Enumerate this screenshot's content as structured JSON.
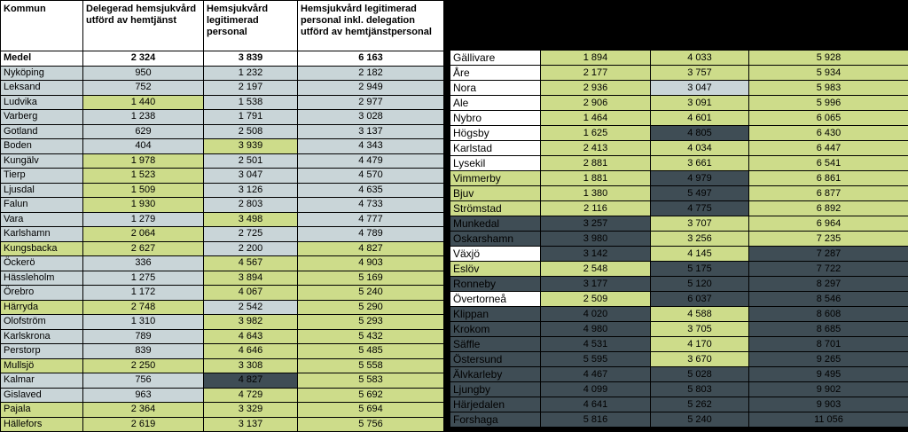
{
  "headers": {
    "kommun": "Kommun",
    "col1": "Delegerad hemsjukvård utförd av hemtjänst",
    "col2": "Hemsjukvård legitimerad personal",
    "col3": "Hemsjukvård legitimerad personal inkl. delegation utförd av hemtjänstpersonal"
  },
  "colors": {
    "green": "#cddc8a",
    "blue_grey": "#c9d5d8",
    "dark": "#3f4d55",
    "white": "#ffffff"
  },
  "left_rows": [
    {
      "kommun": "Medel",
      "v1": "2 324",
      "v2": "3 839",
      "v3": "6 163",
      "c": [
        "w",
        "w",
        "w",
        "w"
      ]
    },
    {
      "kommun": "Nyköping",
      "v1": "950",
      "v2": "1 232",
      "v3": "2 182",
      "c": [
        "b",
        "b",
        "b",
        "b"
      ]
    },
    {
      "kommun": "Leksand",
      "v1": "752",
      "v2": "2 197",
      "v3": "2 949",
      "c": [
        "b",
        "b",
        "b",
        "b"
      ]
    },
    {
      "kommun": "Ludvika",
      "v1": "1 440",
      "v2": "1 538",
      "v3": "2 977",
      "c": [
        "b",
        "g",
        "b",
        "b"
      ]
    },
    {
      "kommun": "Varberg",
      "v1": "1 238",
      "v2": "1 791",
      "v3": "3 028",
      "c": [
        "b",
        "b",
        "b",
        "b"
      ]
    },
    {
      "kommun": "Gotland",
      "v1": "629",
      "v2": "2 508",
      "v3": "3 137",
      "c": [
        "b",
        "b",
        "b",
        "b"
      ]
    },
    {
      "kommun": "Boden",
      "v1": "404",
      "v2": "3 939",
      "v3": "4 343",
      "c": [
        "b",
        "b",
        "g",
        "b"
      ]
    },
    {
      "kommun": "Kungälv",
      "v1": "1 978",
      "v2": "2 501",
      "v3": "4 479",
      "c": [
        "b",
        "g",
        "b",
        "b"
      ]
    },
    {
      "kommun": "Tierp",
      "v1": "1 523",
      "v2": "3 047",
      "v3": "4 570",
      "c": [
        "b",
        "g",
        "b",
        "b"
      ]
    },
    {
      "kommun": "Ljusdal",
      "v1": "1 509",
      "v2": "3 126",
      "v3": "4 635",
      "c": [
        "b",
        "g",
        "b",
        "b"
      ]
    },
    {
      "kommun": "Falun",
      "v1": "1 930",
      "v2": "2 803",
      "v3": "4 733",
      "c": [
        "b",
        "g",
        "b",
        "b"
      ]
    },
    {
      "kommun": "Vara",
      "v1": "1 279",
      "v2": "3 498",
      "v3": "4 777",
      "c": [
        "b",
        "b",
        "g",
        "b"
      ]
    },
    {
      "kommun": "Karlshamn",
      "v1": "2 064",
      "v2": "2 725",
      "v3": "4 789",
      "c": [
        "b",
        "g",
        "b",
        "b"
      ]
    },
    {
      "kommun": "Kungsbacka",
      "v1": "2 627",
      "v2": "2 200",
      "v3": "4 827",
      "c": [
        "g",
        "g",
        "b",
        "g"
      ]
    },
    {
      "kommun": "Öckerö",
      "v1": "336",
      "v2": "4 567",
      "v3": "4 903",
      "c": [
        "b",
        "b",
        "g",
        "g"
      ]
    },
    {
      "kommun": "Hässleholm",
      "v1": "1 275",
      "v2": "3 894",
      "v3": "5 169",
      "c": [
        "b",
        "b",
        "g",
        "g"
      ]
    },
    {
      "kommun": "Örebro",
      "v1": "1 172",
      "v2": "4 067",
      "v3": "5 240",
      "c": [
        "b",
        "b",
        "g",
        "g"
      ]
    },
    {
      "kommun": "Härryda",
      "v1": "2 748",
      "v2": "2 542",
      "v3": "5 290",
      "c": [
        "g",
        "g",
        "b",
        "g"
      ]
    },
    {
      "kommun": "Olofström",
      "v1": "1 310",
      "v2": "3 982",
      "v3": "5 293",
      "c": [
        "b",
        "b",
        "g",
        "g"
      ]
    },
    {
      "kommun": "Karlskrona",
      "v1": "789",
      "v2": "4 643",
      "v3": "5 432",
      "c": [
        "b",
        "b",
        "g",
        "g"
      ]
    },
    {
      "kommun": "Perstorp",
      "v1": "839",
      "v2": "4 646",
      "v3": "5 485",
      "c": [
        "b",
        "b",
        "g",
        "g"
      ]
    },
    {
      "kommun": "Mullsjö",
      "v1": "2 250",
      "v2": "3 308",
      "v3": "5 558",
      "c": [
        "g",
        "g",
        "g",
        "g"
      ]
    },
    {
      "kommun": "Kalmar",
      "v1": "756",
      "v2": "4 827",
      "v3": "5 583",
      "c": [
        "b",
        "b",
        "d",
        "g"
      ]
    },
    {
      "kommun": "Gislaved",
      "v1": "963",
      "v2": "4 729",
      "v3": "5 692",
      "c": [
        "b",
        "b",
        "g",
        "g"
      ]
    },
    {
      "kommun": "Pajala",
      "v1": "2 364",
      "v2": "3 329",
      "v3": "5 694",
      "c": [
        "g",
        "g",
        "g",
        "g"
      ]
    },
    {
      "kommun": "Hällefors",
      "v1": "2 619",
      "v2": "3 137",
      "v3": "5 756",
      "c": [
        "g",
        "g",
        "g",
        "g"
      ]
    }
  ],
  "right_rows": [
    {
      "kommun": "Gällivare",
      "v1": "1 894",
      "v2": "4 033",
      "v3": "5 928",
      "c": [
        "w",
        "g",
        "g",
        "g"
      ]
    },
    {
      "kommun": "Åre",
      "v1": "2 177",
      "v2": "3 757",
      "v3": "5 934",
      "c": [
        "w",
        "g",
        "g",
        "g"
      ]
    },
    {
      "kommun": "Nora",
      "v1": "2 936",
      "v2": "3 047",
      "v3": "5 983",
      "c": [
        "w",
        "g",
        "b",
        "g"
      ]
    },
    {
      "kommun": "Ale",
      "v1": "2 906",
      "v2": "3 091",
      "v3": "5 996",
      "c": [
        "w",
        "g",
        "g",
        "g"
      ]
    },
    {
      "kommun": "Nybro",
      "v1": "1 464",
      "v2": "4 601",
      "v3": "6 065",
      "c": [
        "w",
        "g",
        "g",
        "g"
      ]
    },
    {
      "kommun": "Högsby",
      "v1": "1 625",
      "v2": "4 805",
      "v3": "6 430",
      "c": [
        "w",
        "g",
        "d",
        "g"
      ]
    },
    {
      "kommun": "Karlstad",
      "v1": "2 413",
      "v2": "4 034",
      "v3": "6 447",
      "c": [
        "w",
        "g",
        "g",
        "g"
      ]
    },
    {
      "kommun": "Lysekil",
      "v1": "2 881",
      "v2": "3 661",
      "v3": "6 541",
      "c": [
        "w",
        "g",
        "g",
        "g"
      ]
    },
    {
      "kommun": "Vimmerby",
      "v1": "1 881",
      "v2": "4 979",
      "v3": "6 861",
      "c": [
        "g",
        "g",
        "d",
        "g"
      ]
    },
    {
      "kommun": "Bjuv",
      "v1": "1 380",
      "v2": "5 497",
      "v3": "6 877",
      "c": [
        "g",
        "g",
        "d",
        "g"
      ]
    },
    {
      "kommun": "Strömstad",
      "v1": "2 116",
      "v2": "4 775",
      "v3": "6 892",
      "c": [
        "g",
        "g",
        "d",
        "g"
      ]
    },
    {
      "kommun": "Munkedal",
      "v1": "3 257",
      "v2": "3 707",
      "v3": "6 964",
      "c": [
        "d",
        "d",
        "g",
        "g"
      ]
    },
    {
      "kommun": "Oskarshamn",
      "v1": "3 980",
      "v2": "3 256",
      "v3": "7 235",
      "c": [
        "d",
        "d",
        "g",
        "g"
      ]
    },
    {
      "kommun": "Växjö",
      "v1": "3 142",
      "v2": "4 145",
      "v3": "7 287",
      "c": [
        "w",
        "d",
        "g",
        "d"
      ]
    },
    {
      "kommun": "Eslöv",
      "v1": "2 548",
      "v2": "5 175",
      "v3": "7 722",
      "c": [
        "g",
        "g",
        "d",
        "d"
      ]
    },
    {
      "kommun": "Ronneby",
      "v1": "3 177",
      "v2": "5 120",
      "v3": "8 297",
      "c": [
        "d",
        "d",
        "d",
        "d"
      ]
    },
    {
      "kommun": "Övertorneå",
      "v1": "2 509",
      "v2": "6 037",
      "v3": "8 546",
      "c": [
        "w",
        "g",
        "d",
        "d"
      ]
    },
    {
      "kommun": "Klippan",
      "v1": "4 020",
      "v2": "4 588",
      "v3": "8 608",
      "c": [
        "d",
        "d",
        "g",
        "d"
      ]
    },
    {
      "kommun": "Krokom",
      "v1": "4 980",
      "v2": "3 705",
      "v3": "8 685",
      "c": [
        "d",
        "d",
        "g",
        "d"
      ]
    },
    {
      "kommun": "Säffle",
      "v1": "4 531",
      "v2": "4 170",
      "v3": "8 701",
      "c": [
        "d",
        "d",
        "g",
        "d"
      ]
    },
    {
      "kommun": "Östersund",
      "v1": "5 595",
      "v2": "3 670",
      "v3": "9 265",
      "c": [
        "d",
        "d",
        "g",
        "d"
      ]
    },
    {
      "kommun": "Älvkarleby",
      "v1": "4 467",
      "v2": "5 028",
      "v3": "9 495",
      "c": [
        "d",
        "d",
        "d",
        "d"
      ]
    },
    {
      "kommun": "Ljungby",
      "v1": "4 099",
      "v2": "5 803",
      "v3": "9 902",
      "c": [
        "d",
        "d",
        "d",
        "d"
      ]
    },
    {
      "kommun": "Härjedalen",
      "v1": "4 641",
      "v2": "5 262",
      "v3": "9 903",
      "c": [
        "d",
        "d",
        "d",
        "d"
      ]
    },
    {
      "kommun": "Forshaga",
      "v1": "5 816",
      "v2": "5 240",
      "v3": "11 056",
      "c": [
        "d",
        "d",
        "d",
        "d"
      ]
    }
  ]
}
